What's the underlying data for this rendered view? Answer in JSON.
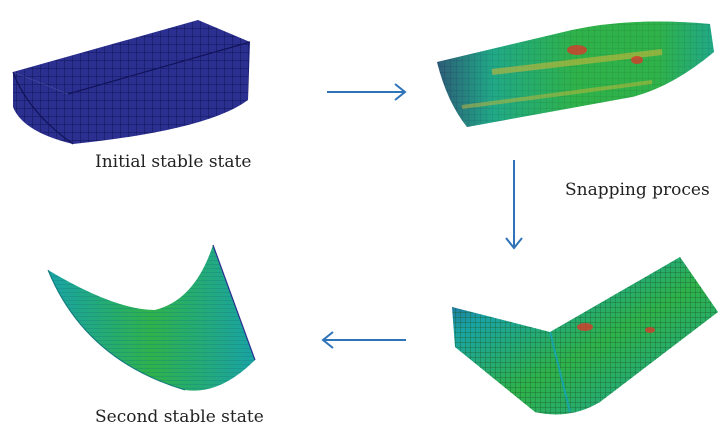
{
  "labels": {
    "initial": "Initial stable state",
    "snapping": "Snapping proces",
    "second": "Second stable state"
  },
  "colors": {
    "mesh_blue": "#2b2f8f",
    "mesh_green": "#2fb24a",
    "mesh_cyan": "#19a3a6",
    "mesh_red": "#d7392b",
    "mesh_yellow": "#c9b83a",
    "arrow": "#2f73b8"
  }
}
